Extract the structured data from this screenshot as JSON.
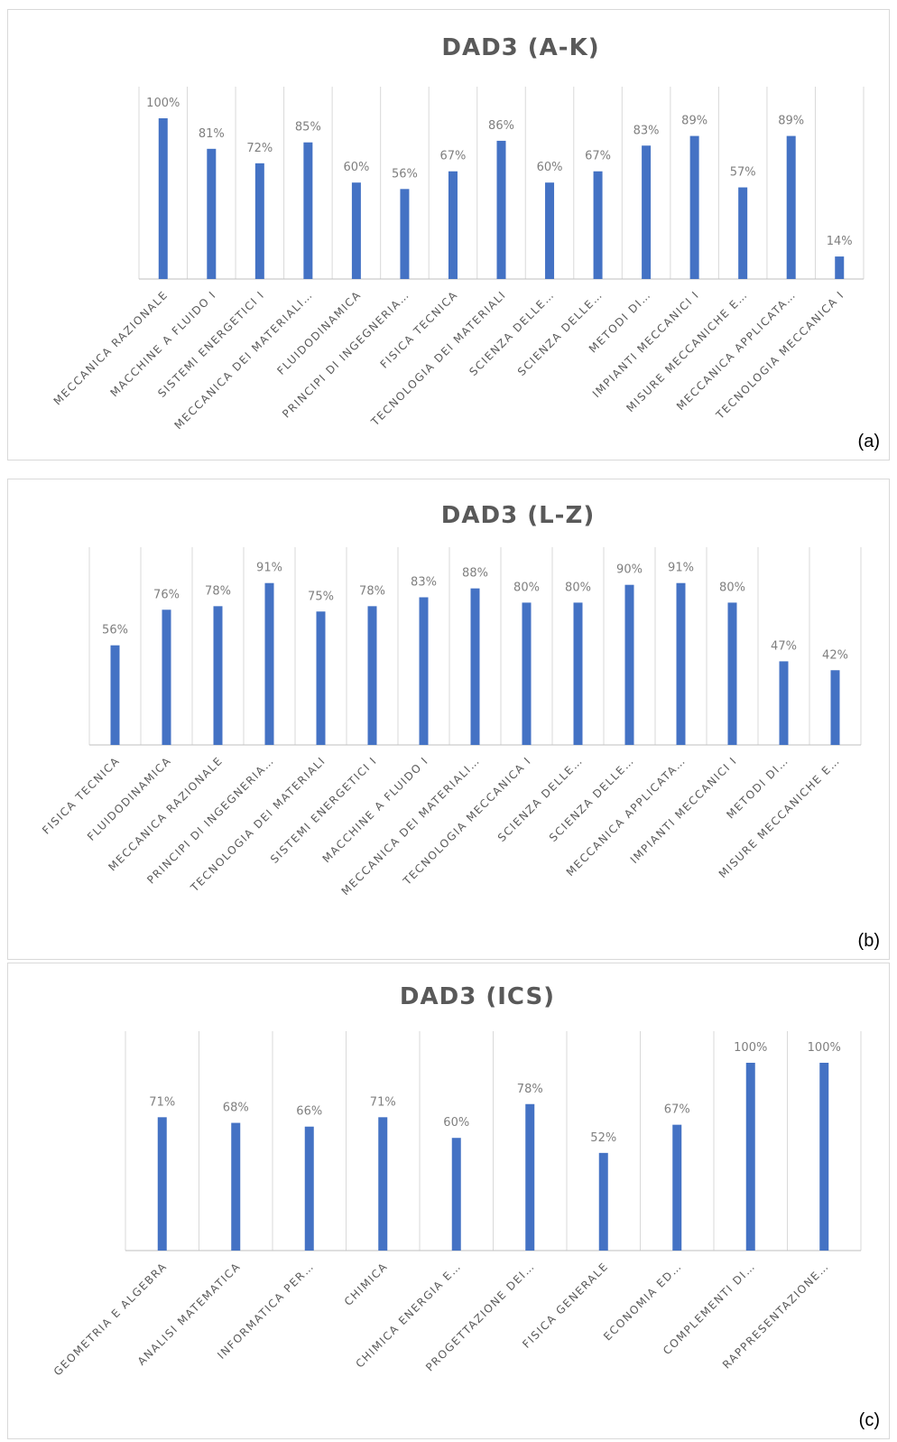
{
  "chart_data": [
    {
      "type": "bar",
      "title": "DAD3  (A-K)",
      "panel_label": "(a)",
      "bar_color": "#4472C4",
      "ylim": [
        0,
        100
      ],
      "categories": [
        "MECCANICA RAZIONALE",
        "MACCHINE A FLUIDO I",
        "SISTEMI ENERGETICI I",
        "MECCANICA DEI MATERIALI…",
        "FLUIDODINAMICA",
        "PRINCIPI DI INGEGNERIA…",
        "FISICA TECNICA",
        "TECNOLOGIA DEI MATERIALI",
        "SCIENZA DELLE…",
        "SCIENZA DELLE…",
        "METODI DI…",
        "IMPIANTI MECCANICI I",
        "MISURE MECCANICHE E…",
        "MECCANICA APPLICATA…",
        "TECNOLOGIA MECCANICA I"
      ],
      "values": [
        100,
        81,
        72,
        85,
        60,
        56,
        67,
        86,
        60,
        67,
        83,
        89,
        57,
        89,
        14
      ],
      "value_labels": [
        "100%",
        "81%",
        "72%",
        "85%",
        "60%",
        "56%",
        "67%",
        "86%",
        "60%",
        "67%",
        "83%",
        "89%",
        "57%",
        "89%",
        "14%"
      ]
    },
    {
      "type": "bar",
      "title": "DAD3  (L-Z)",
      "panel_label": "(b)",
      "bar_color": "#4472C4",
      "ylim": [
        0,
        100
      ],
      "categories": [
        "FISICA TECNICA",
        "FLUIDODINAMICA",
        "MECCANICA RAZIONALE",
        "PRINCIPI DI INGEGNERIA…",
        "TECNOLOGIA DEI MATERIALI",
        "SISTEMI ENERGETICI I",
        "MACCHINE A FLUIDO I",
        "MECCANICA DEI MATERIALI…",
        "TECNOLOGIA MECCANICA I",
        "SCIENZA DELLE…",
        "SCIENZA DELLE…",
        "MECCANICA APPLICATA…",
        "IMPIANTI MECCANICI I",
        "METODI DI…",
        "MISURE MECCANICHE E…"
      ],
      "values": [
        56,
        76,
        78,
        91,
        75,
        78,
        83,
        88,
        80,
        80,
        90,
        91,
        80,
        47,
        42
      ],
      "value_labels": [
        "56%",
        "76%",
        "78%",
        "91%",
        "75%",
        "78%",
        "83%",
        "88%",
        "80%",
        "80%",
        "90%",
        "91%",
        "80%",
        "47%",
        "42%"
      ]
    },
    {
      "type": "bar",
      "title": "DAD3  (ICS)",
      "panel_label": "(c)",
      "bar_color": "#4472C4",
      "ylim": [
        0,
        100
      ],
      "categories": [
        "GEOMETRIA E ALGEBRA",
        "ANALISI MATEMATICA",
        "INFORMATICA PER…",
        "CHIMICA",
        "CHIMICA ENERGIA E…",
        "PROGETTAZIONE DEI…",
        "FISICA GENERALE",
        "ECONOMIA ED…",
        "COMPLEMENTI DI…",
        "RAPPRESENTAZIONE…"
      ],
      "values": [
        71,
        68,
        66,
        71,
        60,
        78,
        52,
        67,
        100,
        100
      ],
      "value_labels": [
        "71%",
        "68%",
        "66%",
        "71%",
        "60%",
        "78%",
        "52%",
        "67%",
        "100%",
        "100%"
      ]
    }
  ]
}
